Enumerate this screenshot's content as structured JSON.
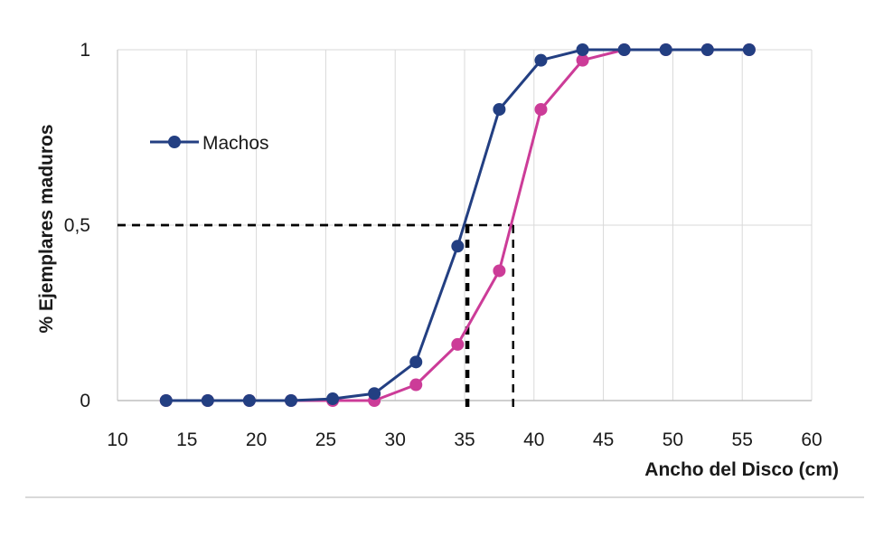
{
  "chart_data": {
    "type": "line",
    "title": "",
    "xlabel": "Ancho del Disco (cm)",
    "ylabel": "% Ejemplares maduros",
    "xlim": [
      10,
      60
    ],
    "ylim": [
      0,
      1
    ],
    "x_ticks": [
      "10",
      "15",
      "20",
      "25",
      "30",
      "35",
      "40",
      "45",
      "50",
      "55",
      "60"
    ],
    "y_ticks": [
      {
        "value": 0,
        "label": "0"
      },
      {
        "value": 0.5,
        "label": "0,5"
      },
      {
        "value": 1,
        "label": "1"
      }
    ],
    "grid": true,
    "legend": {
      "position": "upper-left",
      "entries": [
        "Machos"
      ]
    },
    "colors": {
      "machos": "#233f82",
      "second_series": "#cc3c98",
      "reference_lines": "#000000",
      "grid": "#d9d9d9",
      "axis": "#bfbfbf"
    },
    "series": [
      {
        "name": "Machos",
        "x": [
          13.5,
          16.5,
          19.5,
          22.5,
          25.5,
          28.5,
          31.5,
          34.5,
          37.5,
          40.5,
          43.5,
          46.5,
          49.5,
          52.5,
          55.5
        ],
        "values": [
          0,
          0,
          0,
          0,
          0.005,
          0.02,
          0.11,
          0.44,
          0.83,
          0.97,
          1,
          1,
          1,
          1,
          1
        ]
      },
      {
        "x": [
          13.5,
          16.5,
          19.5,
          22.5,
          25.5,
          28.5,
          31.5,
          34.5,
          37.5,
          40.5,
          43.5,
          46.5,
          49.5,
          52.5,
          55.5
        ],
        "values": [
          0,
          0,
          0,
          0,
          0,
          0,
          0.045,
          0.16,
          0.37,
          0.83,
          0.97,
          1,
          1,
          1,
          1
        ]
      }
    ],
    "reference_lines": [
      {
        "y": 0.5,
        "x_end": 35.2
      },
      {
        "y": 0.5,
        "x_end": 38.5
      }
    ]
  }
}
